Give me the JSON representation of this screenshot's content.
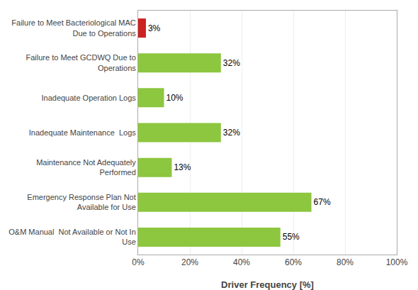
{
  "chart_data": {
    "type": "bar",
    "orientation": "horizontal",
    "categories": [
      "O&M Manual  Not Available or Not In\nUse",
      "Emergency Response Plan Not\nAvailable for Use",
      "Maintenance Not Adequately\nPerformed",
      "Inadequate Maintenance  Logs",
      "Inadequate Operation Logs",
      "Failure to Meet GCDWQ Due to\nOperations",
      "Failure to Meet Bacteriological MAC\nDue to Operations"
    ],
    "values": [
      55,
      67,
      13,
      32,
      10,
      32,
      3
    ],
    "value_labels": [
      "55%",
      "67%",
      "13%",
      "32%",
      "10%",
      "32%",
      "3%"
    ],
    "data_labels": true,
    "colors": [
      "#8dc63f",
      "#8dc63f",
      "#8dc63f",
      "#8dc63f",
      "#8dc63f",
      "#8dc63f",
      "#cc2222"
    ],
    "xlabel": "Driver Frequency [%]",
    "xlim": [
      0,
      100
    ],
    "xticks": [
      {
        "value": 0,
        "label": "0%"
      },
      {
        "value": 20,
        "label": "20%"
      },
      {
        "value": 40,
        "label": "40%"
      },
      {
        "value": 60,
        "label": "60%"
      },
      {
        "value": 80,
        "label": "80%"
      },
      {
        "value": 100,
        "label": "100%"
      }
    ],
    "grid": true
  }
}
